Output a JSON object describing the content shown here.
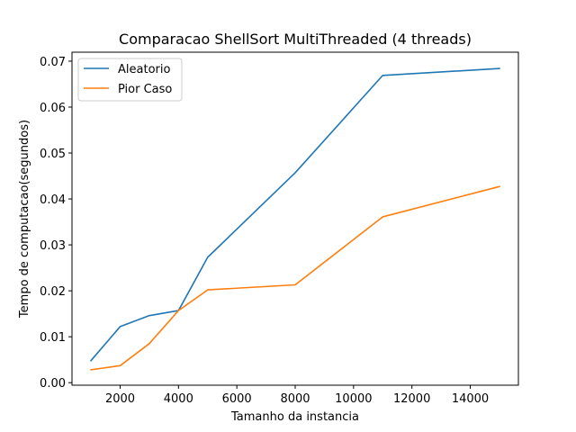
{
  "chart_data": {
    "type": "line",
    "title": "Comparacao ShellSort MultiThreaded (4 threads)",
    "xlabel": "Tamanho da instancia",
    "ylabel": "Tempo de computacao(segundos)",
    "x": [
      1000,
      2000,
      3000,
      4000,
      5000,
      8000,
      11000,
      15000
    ],
    "xlim": [
      350,
      15650
    ],
    "ylim": [
      -0.00055,
      0.07195
    ],
    "xticks": [
      2000,
      4000,
      6000,
      8000,
      10000,
      12000,
      14000
    ],
    "xtick_labels": [
      "2000",
      "4000",
      "6000",
      "8000",
      "10000",
      "12000",
      "14000"
    ],
    "yticks": [
      0.0,
      0.01,
      0.02,
      0.03,
      0.04,
      0.05,
      0.06,
      0.07
    ],
    "ytick_labels": [
      "0.00",
      "0.01",
      "0.02",
      "0.03",
      "0.04",
      "0.05",
      "0.06",
      "0.07"
    ],
    "grid": false,
    "legend_position": "top-left",
    "series": [
      {
        "name": "Aleatorio",
        "color": "#1f77b4",
        "values": [
          0.0048,
          0.0122,
          0.0146,
          0.0157,
          0.0273,
          0.0457,
          0.0669,
          0.0684
        ]
      },
      {
        "name": "Pior Caso",
        "color": "#ff7f0e",
        "values": [
          0.0028,
          0.0037,
          0.0085,
          0.0157,
          0.0202,
          0.0213,
          0.0361,
          0.0427
        ]
      }
    ]
  }
}
